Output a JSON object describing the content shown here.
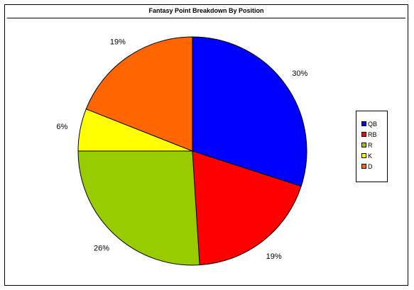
{
  "chart_data": {
    "type": "pie",
    "title": "Fantasy Point Breakdown By Position",
    "categories": [
      "QB",
      "RB",
      "R",
      "K",
      "D"
    ],
    "values": [
      30,
      19,
      26,
      6,
      19
    ],
    "labels": [
      "30%",
      "19%",
      "26%",
      "6%",
      "19%"
    ],
    "colors": [
      "#0000ff",
      "#ff0000",
      "#99cc00",
      "#ffff00",
      "#ff6600"
    ],
    "legend_position": "right"
  },
  "legend": {
    "items": [
      {
        "label": "QB",
        "color": "#0000ff"
      },
      {
        "label": "RB",
        "color": "#ff0000"
      },
      {
        "label": "R",
        "color": "#99cc00"
      },
      {
        "label": "K",
        "color": "#ffff00"
      },
      {
        "label": "D",
        "color": "#ff6600"
      }
    ]
  }
}
